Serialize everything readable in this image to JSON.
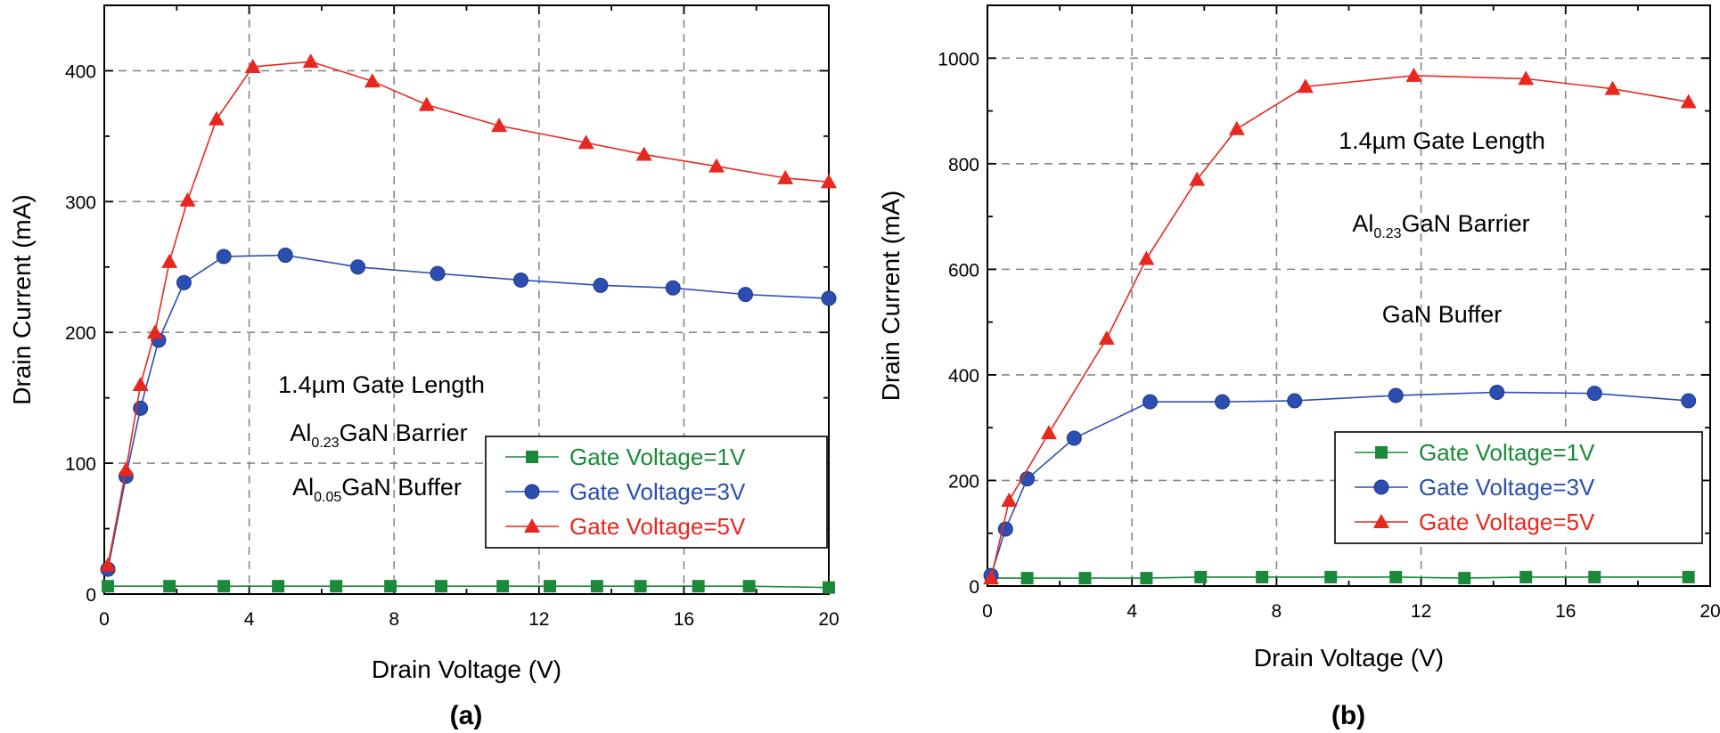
{
  "chart_data": [
    {
      "type": "line",
      "panel_label": "(a)",
      "xlabel": "Drain Voltage (V)",
      "ylabel": "Drain Current (mA)",
      "xlim": [
        0,
        20
      ],
      "ylim": [
        0,
        450
      ],
      "xticks": [
        0,
        4,
        8,
        12,
        16,
        20
      ],
      "yticks": [
        0,
        100,
        200,
        300,
        400
      ],
      "grid": true,
      "legend_position": "bottom-right",
      "annotations": [
        {
          "parts": [
            {
              "text": "1.4µm Gate Length"
            }
          ]
        },
        {
          "parts": [
            {
              "text": "Al"
            },
            {
              "text": "0.23",
              "sub": true
            },
            {
              "text": "GaN Barrier"
            }
          ]
        },
        {
          "parts": [
            {
              "text": "Al"
            },
            {
              "text": "0.05",
              "sub": true
            },
            {
              "text": "GaN Buffer"
            }
          ]
        }
      ],
      "series": [
        {
          "name": "Gate Voltage=1V",
          "color": "#1a8a3a",
          "marker": "square",
          "x": [
            0.1,
            1.8,
            3.3,
            4.8,
            6.4,
            7.9,
            9.3,
            11.0,
            12.3,
            13.6,
            14.8,
            16.4,
            17.8,
            20.0
          ],
          "y": [
            6,
            6,
            6,
            6,
            6,
            6,
            6,
            6,
            6,
            6,
            6,
            6,
            6,
            5
          ]
        },
        {
          "name": "Gate Voltage=3V",
          "color": "#2b4eb3",
          "marker": "circle",
          "x": [
            0.1,
            0.6,
            1.0,
            1.5,
            2.2,
            3.3,
            5.0,
            7.0,
            9.2,
            11.5,
            13.7,
            15.7,
            17.7,
            20.0
          ],
          "y": [
            19,
            90,
            142,
            194,
            238,
            258,
            259,
            250,
            245,
            240,
            236,
            234,
            229,
            226
          ]
        },
        {
          "name": "Gate Voltage=5V",
          "color": "#e8281e",
          "marker": "triangle",
          "x": [
            0.1,
            0.6,
            1.0,
            1.4,
            1.8,
            2.3,
            3.1,
            4.1,
            5.7,
            7.4,
            8.9,
            10.9,
            13.3,
            14.9,
            16.9,
            18.8,
            20.0
          ],
          "y": [
            22,
            95,
            160,
            200,
            254,
            301,
            363,
            403,
            407,
            392,
            374,
            358,
            345,
            336,
            327,
            318,
            315
          ]
        }
      ]
    },
    {
      "type": "line",
      "panel_label": "(b)",
      "xlabel": "Drain Voltage (V)",
      "ylabel": "Drain Current (mA)",
      "xlim": [
        0,
        20
      ],
      "ylim": [
        0,
        1100
      ],
      "xticks": [
        0,
        4,
        8,
        12,
        16,
        20
      ],
      "yticks": [
        0,
        200,
        400,
        600,
        800,
        1000
      ],
      "grid": true,
      "legend_position": "bottom-right",
      "annotations": [
        {
          "parts": [
            {
              "text": "1.4µm Gate Length"
            }
          ]
        },
        {
          "parts": [
            {
              "text": "Al"
            },
            {
              "text": "0.23",
              "sub": true
            },
            {
              "text": "GaN Barrier"
            }
          ]
        },
        {
          "parts": [
            {
              "text": "GaN Buffer"
            }
          ]
        }
      ],
      "series": [
        {
          "name": "Gate Voltage=1V",
          "color": "#1a8a3a",
          "marker": "square",
          "x": [
            0.1,
            1.1,
            2.7,
            4.4,
            5.9,
            7.6,
            9.5,
            11.3,
            13.2,
            14.9,
            16.8,
            19.4
          ],
          "y": [
            15,
            15,
            15,
            15,
            17,
            17,
            17,
            17,
            15,
            17,
            17,
            17
          ]
        },
        {
          "name": "Gate Voltage=3V",
          "color": "#2b4eb3",
          "marker": "circle",
          "x": [
            0.1,
            0.5,
            1.1,
            2.4,
            4.5,
            6.5,
            8.5,
            11.3,
            14.1,
            16.8,
            19.4
          ],
          "y": [
            20,
            108,
            203,
            280,
            349,
            349,
            351,
            361,
            367,
            365,
            351
          ]
        },
        {
          "name": "Gate Voltage=5V",
          "color": "#e8281e",
          "marker": "triangle",
          "x": [
            0.1,
            0.6,
            1.7,
            3.3,
            4.4,
            5.8,
            6.9,
            8.8,
            11.8,
            14.9,
            17.3,
            19.4
          ],
          "y": [
            15,
            162,
            290,
            469,
            620,
            770,
            866,
            946,
            967,
            961,
            942,
            917
          ]
        }
      ]
    }
  ]
}
